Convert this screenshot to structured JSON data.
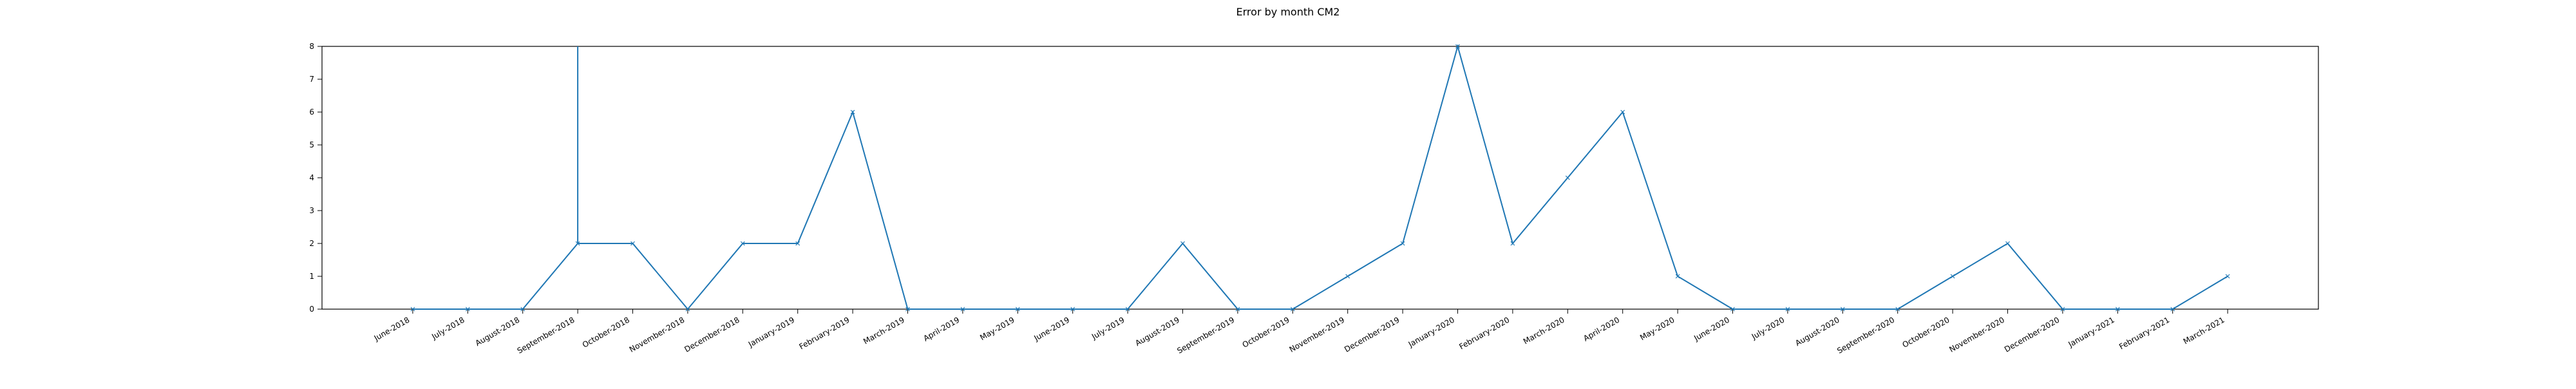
{
  "chart_data": {
    "type": "line",
    "title": "Error by month CM2",
    "xlabel": "",
    "ylabel": "",
    "ylim": [
      0,
      8
    ],
    "yticks": [
      0,
      1,
      2,
      3,
      4,
      5,
      6,
      7,
      8
    ],
    "grid": false,
    "legend": "none",
    "line_color": "#1f77b4",
    "marker": "x",
    "categories": [
      "June-2018",
      "July-2018",
      "August-2018",
      "September-2018",
      "October-2018",
      "November-2018",
      "December-2018",
      "January-2019",
      "February-2019",
      "March-2019",
      "April-2019",
      "May-2019",
      "June-2019",
      "July-2019",
      "August-2019",
      "September-2019",
      "October-2019",
      "November-2019",
      "December-2019",
      "January-2020",
      "February-2020",
      "March-2020",
      "April-2020",
      "May-2020",
      "June-2020",
      "July-2020",
      "August-2020",
      "September-2020",
      "October-2020",
      "November-2020",
      "December-2020",
      "January-2021",
      "February-2021",
      "March-2021"
    ],
    "values": [
      0,
      0,
      0,
      2,
      2,
      0,
      2,
      2,
      6,
      0,
      0,
      0,
      0,
      0,
      2,
      0,
      0,
      1,
      2,
      8,
      2,
      4,
      6,
      1,
      0,
      0,
      0,
      0,
      1,
      2,
      0,
      0,
      0,
      1
    ],
    "annotations": [
      {
        "type": "vertical-line",
        "category": "September-2018",
        "from": 2,
        "to": 8
      }
    ]
  }
}
